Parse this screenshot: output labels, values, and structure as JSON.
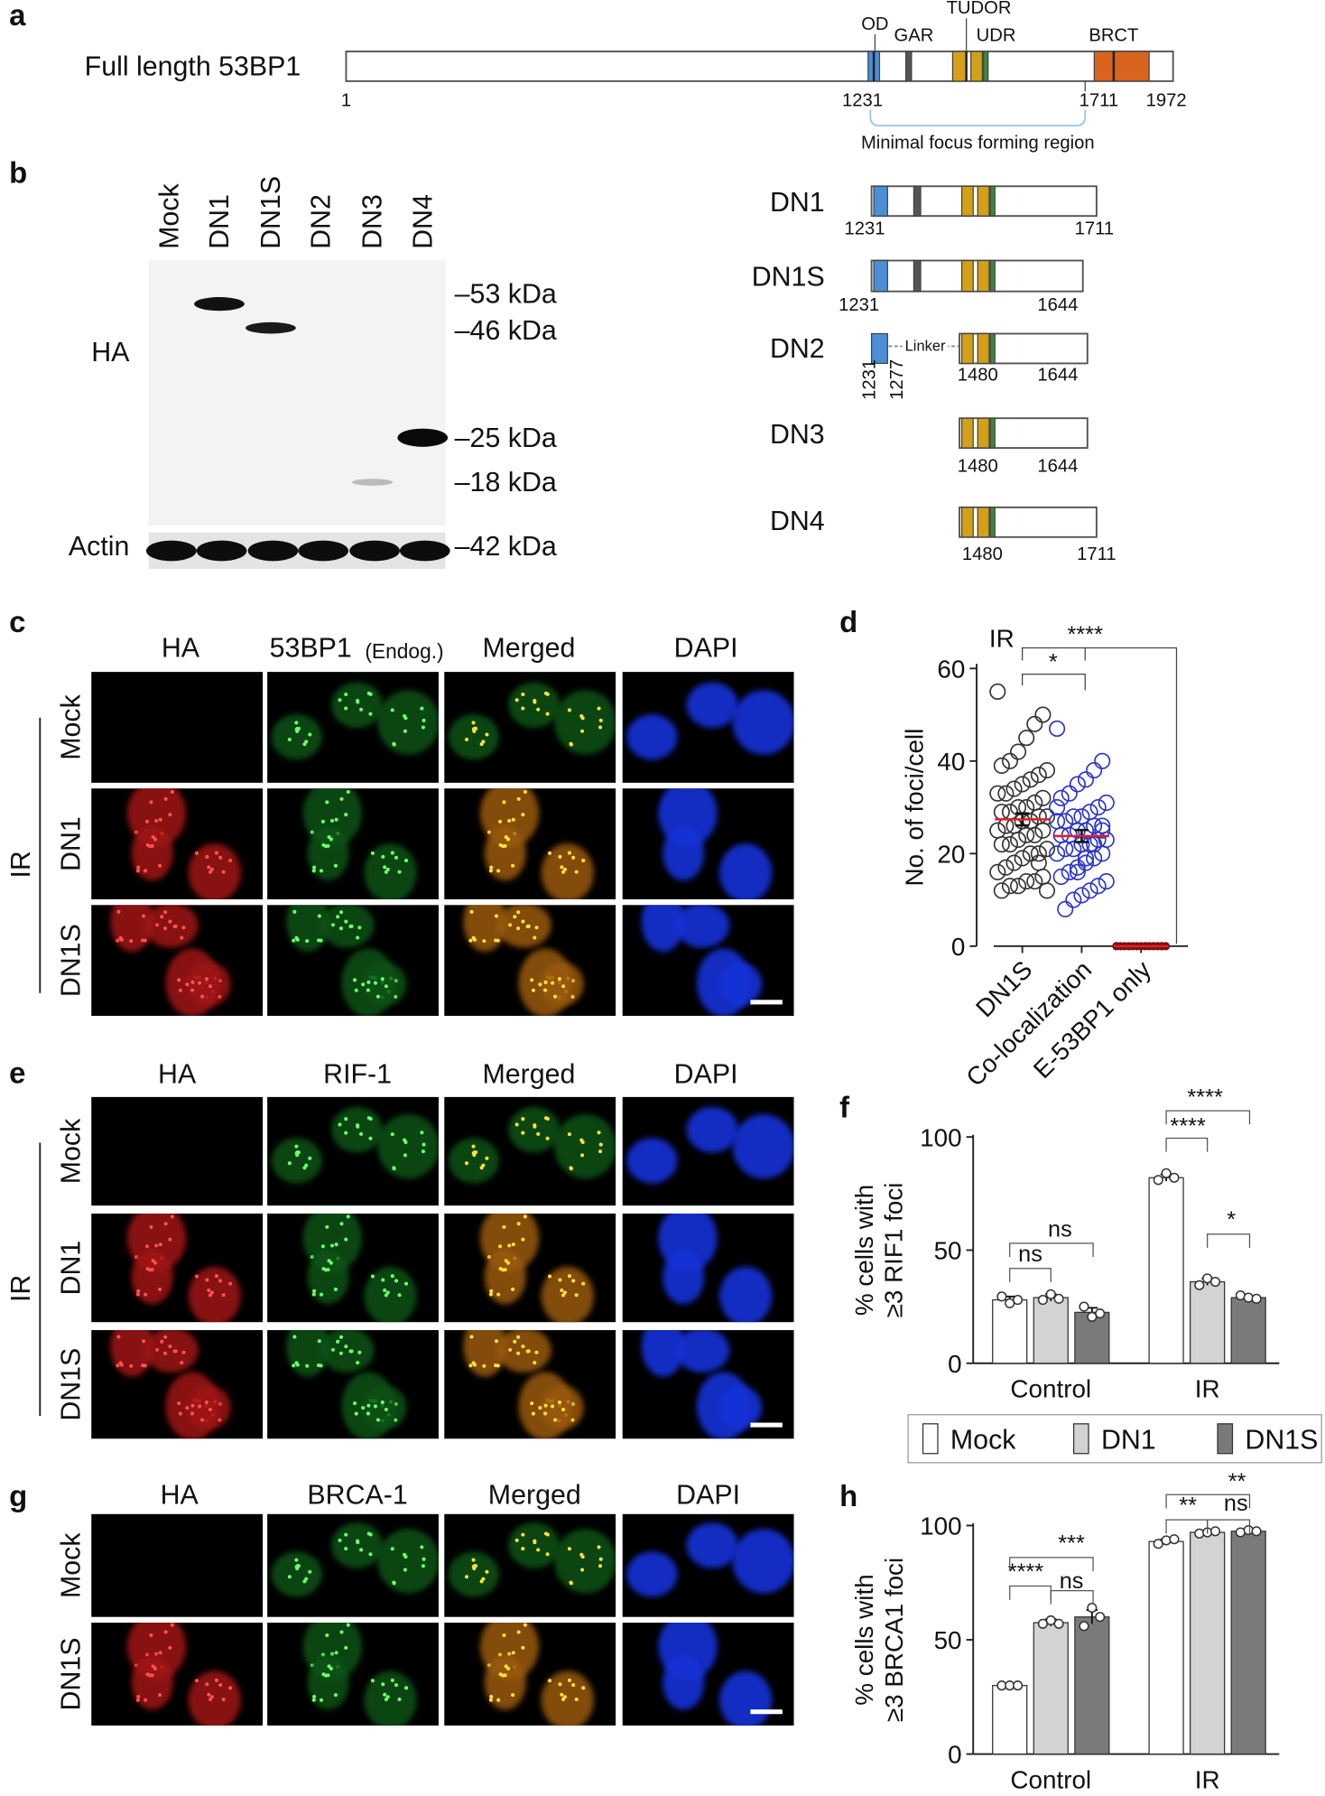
{
  "panel_a": {
    "label": "a",
    "title": "Full length 53BP1",
    "domains": [
      "OD",
      "GAR",
      "TUDOR",
      "UDR",
      "BRCT"
    ],
    "positions": [
      1,
      1231,
      1711,
      1972
    ],
    "region_label": "Minimal focus forming region"
  },
  "panel_b": {
    "label": "b",
    "lanes": [
      "Mock",
      "DN1",
      "DN1S",
      "DN2",
      "DN3",
      "DN4"
    ],
    "blot_labels": [
      "HA",
      "Actin"
    ],
    "markers": [
      "–53 kDa",
      "–46 kDa",
      "–25 kDa",
      "–18 kDa",
      "–42 kDa"
    ],
    "constructs": [
      {
        "name": "DN1",
        "positions": [
          1231,
          1711
        ]
      },
      {
        "name": "DN1S",
        "positions": [
          1231,
          1644
        ]
      },
      {
        "name": "DN2",
        "positions": [
          1231,
          1277,
          1480,
          1644
        ],
        "linker": "Linker"
      },
      {
        "name": "DN3",
        "positions": [
          1480,
          1644
        ]
      },
      {
        "name": "DN4",
        "positions": [
          1480,
          1711
        ]
      }
    ]
  },
  "panel_c": {
    "label": "c",
    "columns": [
      "HA",
      "53BP1",
      "Merged",
      "DAPI"
    ],
    "column_note": "(Endog.)",
    "rows": [
      "Mock",
      "DN1",
      "DN1S"
    ],
    "condition": "IR"
  },
  "panel_e": {
    "label": "e",
    "columns": [
      "HA",
      "RIF-1",
      "Merged",
      "DAPI"
    ],
    "rows": [
      "Mock",
      "DN1",
      "DN1S"
    ],
    "condition": "IR"
  },
  "panel_g": {
    "label": "g",
    "columns": [
      "HA",
      "BRCA-1",
      "Merged",
      "DAPI"
    ],
    "rows": [
      "Mock",
      "DN1S"
    ]
  },
  "chart_data": [
    {
      "type": "strip",
      "label": "d",
      "annotation": "IR",
      "ylabel": "No. of foci/cell",
      "categories": [
        "DN1S",
        "Co-localization",
        "E-53BP1 only"
      ],
      "groups": [
        {
          "color": "#333333",
          "mean": 27.4,
          "sem": 1.3,
          "values": [
            55,
            50,
            48,
            45,
            42,
            40,
            39,
            38,
            37,
            36,
            35,
            34,
            33,
            33,
            32,
            31,
            30,
            30,
            29,
            29,
            28,
            28,
            27,
            27,
            26,
            26,
            25,
            25,
            24,
            24,
            23,
            22,
            22,
            21,
            20,
            20,
            19,
            18,
            17,
            16,
            15,
            14,
            14,
            13,
            13,
            12,
            12,
            18
          ]
        },
        {
          "color": "#2a34c8",
          "mean": 23.8,
          "sem": 1.3,
          "values": [
            47,
            40,
            38,
            36,
            35,
            33,
            32,
            31,
            30,
            29,
            28,
            28,
            27,
            27,
            26,
            26,
            25,
            25,
            24,
            24,
            23,
            23,
            22,
            22,
            21,
            21,
            20,
            20,
            19,
            18,
            17,
            16,
            15,
            14,
            13,
            12,
            11,
            10,
            8,
            30,
            25,
            22,
            19,
            16
          ]
        },
        {
          "color": "#7a1010",
          "mean": 0,
          "sem": 0,
          "values": [
            0,
            0,
            0,
            0,
            0,
            0,
            0,
            0,
            0,
            0,
            0,
            0,
            0,
            0,
            0
          ]
        }
      ],
      "mean_color": "#e02020",
      "ylim": [
        0,
        60
      ],
      "yticks": [
        0,
        20,
        40,
        60
      ],
      "significance": [
        "*",
        "****"
      ]
    },
    {
      "type": "bar",
      "label": "f",
      "ylabel": [
        "% cells with",
        "≥3 RIF1 foci"
      ],
      "categories": [
        "Control",
        "IR"
      ],
      "series": [
        {
          "name": "Mock",
          "color": "#ffffff",
          "values": [
            28,
            82
          ],
          "errors": [
            1.5,
            1.5
          ],
          "points": [
            [
              29.5,
              26.5,
              28
            ],
            [
              81,
              84,
              82
            ]
          ]
        },
        {
          "name": "DN1",
          "color": "#d3d3d3",
          "values": [
            29,
            36
          ],
          "errors": [
            1.5,
            1.5
          ],
          "points": [
            [
              28,
              30.5,
              28.5
            ],
            [
              34.5,
              37.5,
              36
            ]
          ]
        },
        {
          "name": "DN1S",
          "color": "#7a7a7a",
          "values": [
            22.5,
            29
          ],
          "errors": [
            2,
            0.5
          ],
          "points": [
            [
              25,
              20.5,
              22
            ],
            [
              30,
              29,
              28.5
            ]
          ]
        }
      ],
      "ylim": [
        0,
        100
      ],
      "yticks": [
        0,
        50,
        100
      ],
      "legend": "bottom",
      "significance": [
        "ns",
        "ns",
        "****",
        "****",
        "*"
      ]
    },
    {
      "type": "bar",
      "label": "h",
      "ylabel": [
        "% cells with",
        "≥3 BRCA1 foci"
      ],
      "categories": [
        "Control",
        "IR"
      ],
      "series": [
        {
          "name": "Mock",
          "color": "#ffffff",
          "values": [
            30,
            93
          ],
          "errors": [
            0.5,
            1
          ],
          "points": [
            [
              30,
              30,
              30
            ],
            [
              92,
              93.5,
              94
            ]
          ]
        },
        {
          "name": "DN1",
          "color": "#d3d3d3",
          "values": [
            57.5,
            97
          ],
          "errors": [
            1.5,
            0.5
          ],
          "points": [
            [
              57,
              58.5,
              57
            ],
            [
              96.5,
              97,
              97.5
            ]
          ]
        },
        {
          "name": "DN1S",
          "color": "#7a7a7a",
          "values": [
            60,
            97.5
          ],
          "errors": [
            3,
            0.5
          ],
          "points": [
            [
              56,
              64,
              60
            ],
            [
              97,
              98,
              97.5
            ]
          ]
        }
      ],
      "ylim": [
        0,
        100
      ],
      "yticks": [
        0,
        50,
        100
      ],
      "legend": false,
      "significance": [
        "****",
        "ns",
        "***",
        "**",
        "ns",
        "**"
      ]
    }
  ]
}
